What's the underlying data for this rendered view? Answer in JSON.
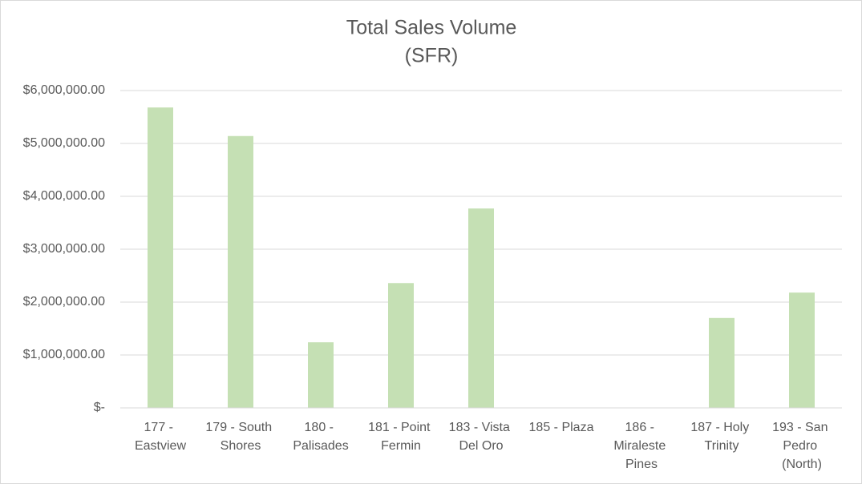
{
  "chart_data": {
    "type": "bar",
    "title": "Total Sales Volume",
    "subtitle": "(SFR)",
    "categories": [
      "177 - Eastview",
      "179 - South Shores",
      "180 - Palisades",
      "181 - Point Fermin",
      "183 - Vista Del Oro",
      "185 - Plaza",
      "186 - Miraleste Pines",
      "187 - Holy Trinity",
      "193 - San Pedro (North)"
    ],
    "values": [
      5680000,
      5140000,
      1240000,
      2360000,
      3770000,
      0,
      0,
      1700000,
      2180000
    ],
    "color": "#c5e0b4",
    "ylim": [
      0,
      6000000
    ],
    "yticks": [
      {
        "value": 0,
        "label": "$-"
      },
      {
        "value": 1000000,
        "label": "$1,000,000.00"
      },
      {
        "value": 2000000,
        "label": "$2,000,000.00"
      },
      {
        "value": 3000000,
        "label": "$3,000,000.00"
      },
      {
        "value": 4000000,
        "label": "$4,000,000.00"
      },
      {
        "value": 5000000,
        "label": "$5,000,000.00"
      },
      {
        "value": 6000000,
        "label": "$6,000,000.00"
      }
    ],
    "grid": true
  }
}
